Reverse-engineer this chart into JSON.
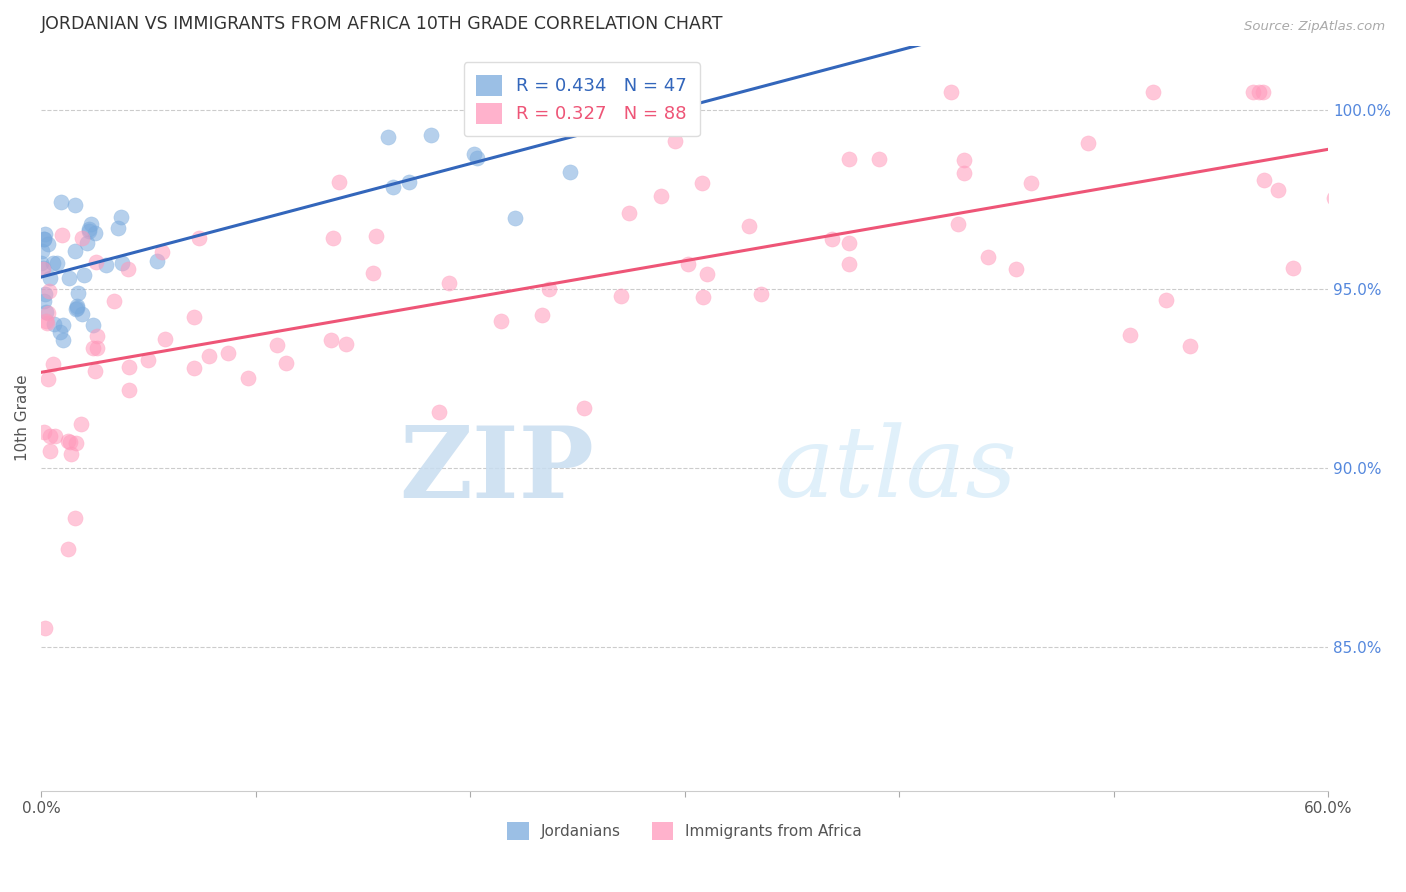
{
  "title": "JORDANIAN VS IMMIGRANTS FROM AFRICA 10TH GRADE CORRELATION CHART",
  "source": "Source: ZipAtlas.com",
  "ylabel": "10th Grade",
  "x_min": 0.0,
  "x_max": 60.0,
  "y_min": 81.0,
  "y_max": 101.8,
  "right_yticks": [
    85.0,
    90.0,
    95.0,
    100.0
  ],
  "x_ticks_labels": [
    "0.0%",
    "",
    "",
    "",
    "",
    "",
    "60.0%"
  ],
  "x_ticks_vals": [
    0,
    10,
    20,
    30,
    40,
    50,
    60
  ],
  "blue_color": "#7AAADD",
  "pink_color": "#FF99BB",
  "blue_line_color": "#3366BB",
  "pink_line_color": "#EE5577",
  "R_blue": 0.434,
  "N_blue": 47,
  "R_pink": 0.327,
  "N_pink": 88,
  "legend_label_blue": "Jordanians",
  "legend_label_pink": "Immigrants from Africa",
  "watermark_zip": "ZIP",
  "watermark_atlas": "atlas",
  "blue_seed": 77,
  "pink_seed": 99
}
